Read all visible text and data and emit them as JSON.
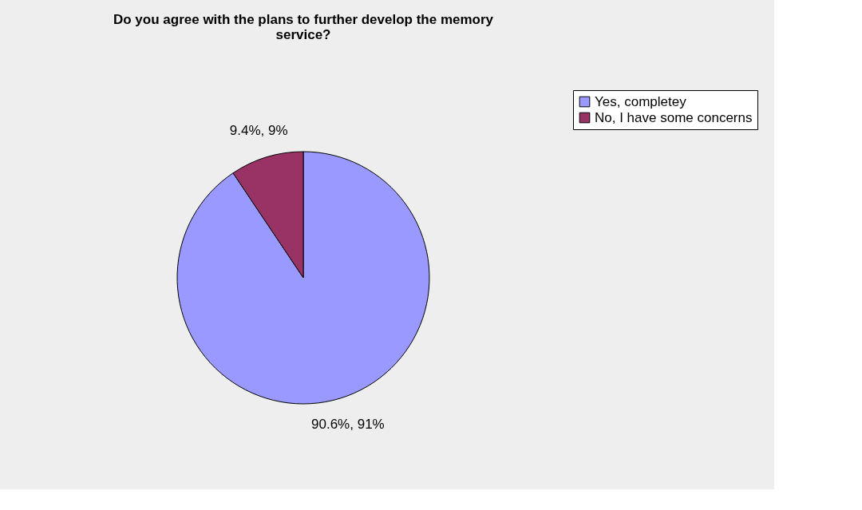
{
  "chart_data": {
    "type": "pie",
    "title": "Do you agree with the plans to further develop the memory service?",
    "categories": [
      "Yes, completey",
      "No, I have some concerns"
    ],
    "values": [
      90.6,
      9.4
    ],
    "colors": [
      "#9999ff",
      "#993366"
    ],
    "value_labels": [
      "90.6%, 91%",
      "9.4%, 9%"
    ],
    "legend": "right"
  }
}
